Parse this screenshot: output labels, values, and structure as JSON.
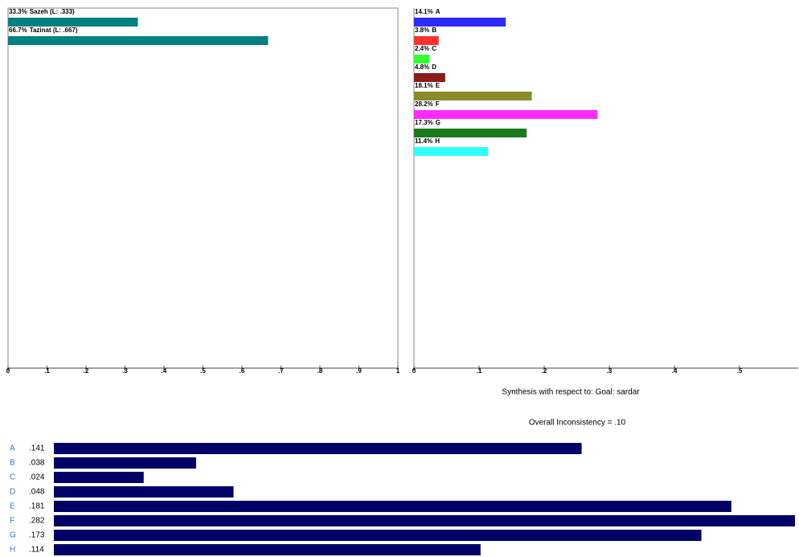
{
  "chart_data": [
    {
      "type": "bar",
      "categories": [
        "Sazeh (L: .333)",
        "Tazinat (L: .667)"
      ],
      "values": [
        0.333,
        0.667
      ],
      "value_labels": [
        "33.3%",
        "66.7%"
      ],
      "color": "#008080",
      "xlim": [
        0,
        1
      ],
      "xticks": [
        0,
        {
          "value": 0.1,
          "label": ".1"
        },
        {
          "value": 0.2,
          "label": ".2"
        },
        {
          "value": 0.3,
          "label": ".3"
        },
        {
          "value": 0.4,
          "label": ".4"
        },
        {
          "value": 0.5,
          "label": ".5"
        },
        {
          "value": 0.6,
          "label": ".6"
        },
        {
          "value": 0.7,
          "label": ".7"
        },
        {
          "value": 0.8,
          "label": ".8"
        },
        {
          "value": 0.9,
          "label": ".9"
        },
        1
      ]
    },
    {
      "type": "bar",
      "categories": [
        "A",
        "B",
        "C",
        "D",
        "E",
        "F",
        "G",
        "H"
      ],
      "values": [
        0.141,
        0.038,
        0.024,
        0.048,
        0.181,
        0.282,
        0.173,
        0.114
      ],
      "value_labels": [
        "14.1%",
        "3.8%",
        "2.4%",
        "4.8%",
        "18.1%",
        "28.2%",
        "17.3%",
        "11.4%"
      ],
      "colors": [
        "#2b2bff",
        "#ff3030",
        "#30ff30",
        "#8b1a1a",
        "#8b8b2a",
        "#ff2bff",
        "#1a7a1a",
        "#30ffff"
      ],
      "xlim": [
        0,
        0.59
      ],
      "xticks": [
        0,
        {
          "value": 0.1,
          "label": ".1"
        },
        {
          "value": 0.2,
          "label": ".2"
        },
        {
          "value": 0.3,
          "label": ".3"
        },
        {
          "value": 0.4,
          "label": ".4"
        },
        {
          "value": 0.5,
          "label": ".5"
        }
      ]
    },
    {
      "type": "bar",
      "title": "Synthesis with respect to: Goal: sardar",
      "annotation": "Overall Inconsistency = .10",
      "categories": [
        "A",
        "B",
        "C",
        "D",
        "E",
        "F",
        "G",
        "H"
      ],
      "values": [
        0.141,
        0.038,
        0.024,
        0.048,
        0.181,
        0.282,
        0.173,
        0.114
      ],
      "value_labels": [
        ".141",
        ".038",
        ".024",
        ".048",
        ".181",
        ".282",
        ".173",
        ".114"
      ],
      "color": "#000066",
      "label_color": "#3b6fd6",
      "xlim": [
        0,
        0.198
      ]
    }
  ]
}
